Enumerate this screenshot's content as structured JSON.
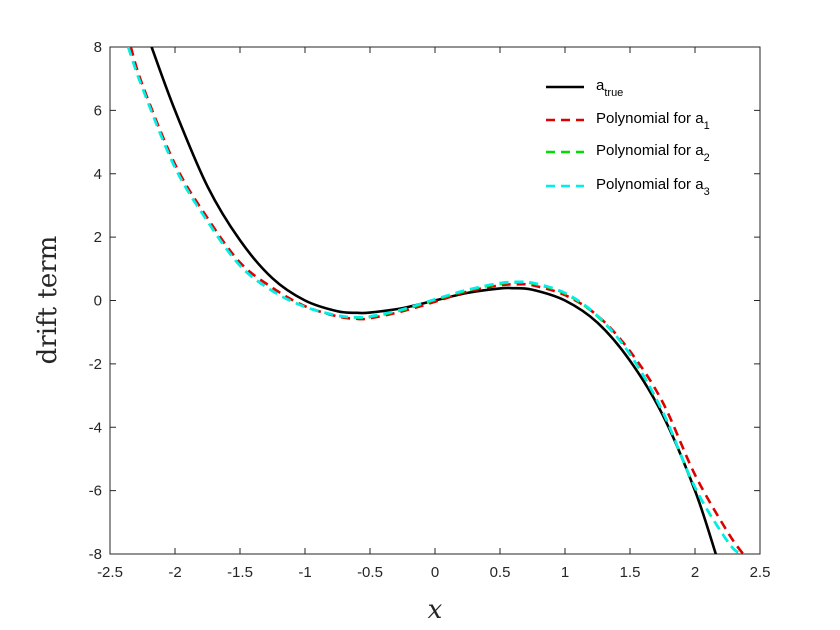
{
  "chart_data": {
    "type": "line",
    "title": "",
    "xlabel": "x",
    "ylabel": "drift term",
    "xlim": [
      -2.5,
      2.5
    ],
    "ylim": [
      -8,
      8
    ],
    "xticks": [
      -2.5,
      -2,
      -1.5,
      -1,
      -0.5,
      0,
      0.5,
      1,
      1.5,
      2,
      2.5
    ],
    "xtick_labels": [
      "-2.5",
      "-2",
      "-1.5",
      "-1",
      "-0.5",
      "0",
      "0.5",
      "1",
      "1.5",
      "2",
      "2.5"
    ],
    "yticks": [
      -8,
      -6,
      -4,
      -2,
      0,
      2,
      4,
      6,
      8
    ],
    "ytick_labels": [
      "-8",
      "-6",
      "-4",
      "-2",
      "0",
      "2",
      "4",
      "6",
      "8"
    ],
    "grid": false,
    "legend_position": "top-right",
    "series": [
      {
        "name": "a",
        "name_sub": "true",
        "color": "#000000",
        "style": "solid",
        "x": [
          -2.18,
          -2.0,
          -1.75,
          -1.5,
          -1.25,
          -1.0,
          -0.75,
          -0.6,
          -0.5,
          -0.25,
          0.0,
          0.25,
          0.5,
          0.6,
          0.75,
          1.0,
          1.25,
          1.5,
          1.75,
          2.0,
          2.16
        ],
        "y": [
          8.0,
          6.0,
          3.6,
          1.9,
          0.7,
          0.0,
          -0.34,
          -0.39,
          -0.38,
          -0.24,
          0.0,
          0.24,
          0.38,
          0.39,
          0.34,
          0.0,
          -0.7,
          -1.9,
          -3.6,
          -6.0,
          -8.0
        ]
      },
      {
        "name": "Polynomial for a",
        "name_sub": "1",
        "color": "#dd0000",
        "style": "dashed",
        "x": [
          -2.34,
          -2.25,
          -2.0,
          -1.75,
          -1.5,
          -1.25,
          -1.0,
          -0.75,
          -0.6,
          -0.5,
          -0.25,
          0.0,
          0.25,
          0.5,
          0.65,
          0.75,
          1.0,
          1.25,
          1.5,
          1.75,
          2.0,
          2.25,
          2.37
        ],
        "y": [
          8.0,
          6.8,
          4.3,
          2.6,
          1.2,
          0.4,
          -0.18,
          -0.5,
          -0.58,
          -0.56,
          -0.34,
          -0.04,
          0.28,
          0.48,
          0.51,
          0.48,
          0.17,
          -0.48,
          -1.6,
          -3.2,
          -5.5,
          -7.3,
          -8.0
        ]
      },
      {
        "name": "Polynomial for a",
        "name_sub": "2",
        "color": "#00dd00",
        "style": "dashed",
        "x": [
          -2.36,
          -2.25,
          -2.0,
          -1.75,
          -1.5,
          -1.25,
          -1.0,
          -0.75,
          -0.6,
          -0.5,
          -0.25,
          0.0,
          0.25,
          0.5,
          0.65,
          0.75,
          1.0,
          1.25,
          1.5,
          1.75,
          2.0,
          2.25,
          2.35
        ],
        "y": [
          8.0,
          6.7,
          4.2,
          2.5,
          1.1,
          0.3,
          -0.2,
          -0.48,
          -0.54,
          -0.52,
          -0.3,
          0.02,
          0.32,
          0.53,
          0.57,
          0.54,
          0.22,
          -0.5,
          -1.7,
          -3.5,
          -5.9,
          -7.6,
          -8.0
        ]
      },
      {
        "name": "Polynomial for a",
        "name_sub": "3",
        "color": "#00eeee",
        "style": "dashed",
        "x": [
          -2.36,
          -2.25,
          -2.0,
          -1.75,
          -1.5,
          -1.25,
          -1.0,
          -0.75,
          -0.6,
          -0.5,
          -0.25,
          0.0,
          0.25,
          0.5,
          0.65,
          0.75,
          1.0,
          1.25,
          1.5,
          1.75,
          2.0,
          2.25,
          2.35
        ],
        "y": [
          8.0,
          6.7,
          4.2,
          2.5,
          1.1,
          0.3,
          -0.2,
          -0.47,
          -0.53,
          -0.5,
          -0.28,
          0.04,
          0.34,
          0.55,
          0.59,
          0.56,
          0.24,
          -0.48,
          -1.7,
          -3.5,
          -5.9,
          -7.6,
          -8.0
        ]
      }
    ]
  }
}
